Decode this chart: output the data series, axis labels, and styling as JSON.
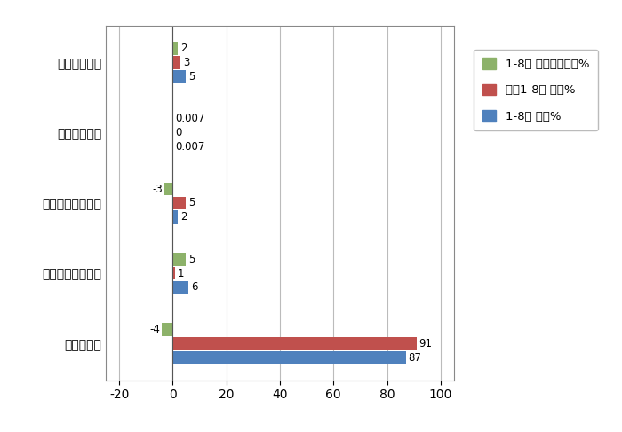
{
  "categories": [
    "纯电动轻卡",
    "柴油混合动力轻卡",
    "汽油混合动力轻卡",
    "甲醇混合动力",
    "燃料电池轻卡"
  ],
  "series_names": [
    "1-8月占比同比增减%",
    "去年1-8月占比%",
    "1-8月占比%"
  ],
  "series_values": [
    [
      -4,
      5,
      -3,
      0.007,
      2
    ],
    [
      91,
      1,
      5,
      0,
      3
    ],
    [
      87,
      6,
      2,
      0.007,
      5
    ]
  ],
  "label_strings": [
    [
      "-4",
      "5",
      "-3",
      "0.007",
      "2"
    ],
    [
      "91",
      "1",
      "5",
      "0",
      "3"
    ],
    [
      "87",
      "6",
      "2",
      "0.007",
      "5"
    ]
  ],
  "colors": [
    "#8DB26A",
    "#C0504D",
    "#4F81BD"
  ],
  "xlim": [
    -25,
    105
  ],
  "xticks": [
    -20,
    0,
    20,
    40,
    60,
    80,
    100
  ],
  "bar_height": 0.2,
  "background_color": "#FFFFFF",
  "grid_color": "#BBBBBB",
  "font_size": 10,
  "label_font_size": 8.5,
  "legend_labels": [
    "1-8月 占比同比增减%",
    "去年1-8月 占比%",
    "1-8月 占比%"
  ]
}
